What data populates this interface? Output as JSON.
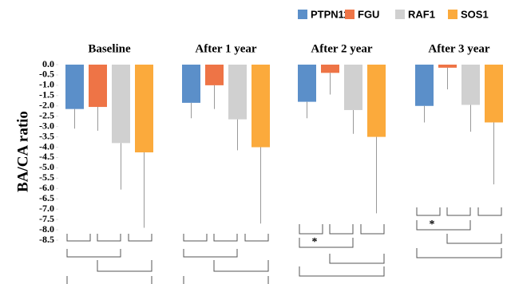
{
  "chart_data": {
    "type": "bar",
    "y_label": "BA/CA ratio",
    "categories": [
      "Baseline",
      "After 1 year",
      "After 2 year",
      "After 3 year"
    ],
    "series": [
      {
        "name": "PTPN11",
        "color": "#5b8fc9",
        "values": [
          -2.15,
          -1.85,
          -1.8,
          -2.0
        ],
        "errors": [
          0.95,
          0.75,
          0.8,
          0.8
        ]
      },
      {
        "name": "FGU",
        "color": "#ee7446",
        "values": [
          -2.05,
          -1.0,
          -0.4,
          -0.15
        ],
        "errors": [
          1.15,
          1.15,
          1.05,
          1.05
        ]
      },
      {
        "name": "RAF1",
        "color": "#d0d0d0",
        "values": [
          -3.8,
          -2.65,
          -2.2,
          -1.95
        ],
        "errors": [
          2.25,
          1.5,
          1.15,
          1.3
        ]
      },
      {
        "name": "SOS1",
        "color": "#fbaa3c",
        "values": [
          -4.25,
          -4.0,
          -3.5,
          -2.8
        ],
        "errors": [
          3.65,
          3.7,
          3.7,
          3.0
        ]
      }
    ],
    "ylim": [
      -8.5,
      0
    ],
    "yticks": [
      {
        "value": 0,
        "label": "0.0"
      },
      -0.5,
      {
        "value": -1,
        "label": "-1.0"
      },
      -1.5,
      {
        "value": -2,
        "label": "-2.0"
      },
      -2.5,
      {
        "value": -3,
        "label": "-3.0"
      },
      -3.5,
      {
        "value": -4,
        "label": "-4.0"
      },
      -4.5,
      {
        "value": -5,
        "label": "-5.0"
      },
      -5.5,
      {
        "value": -6,
        "label": "-6.0"
      },
      -6.5,
      {
        "value": -7,
        "label": "-7.0"
      },
      -7.5,
      {
        "value": -8,
        "label": "-8.0"
      },
      -8.5
    ],
    "legend": "top-right",
    "annotations": [
      "*",
      "*"
    ]
  }
}
